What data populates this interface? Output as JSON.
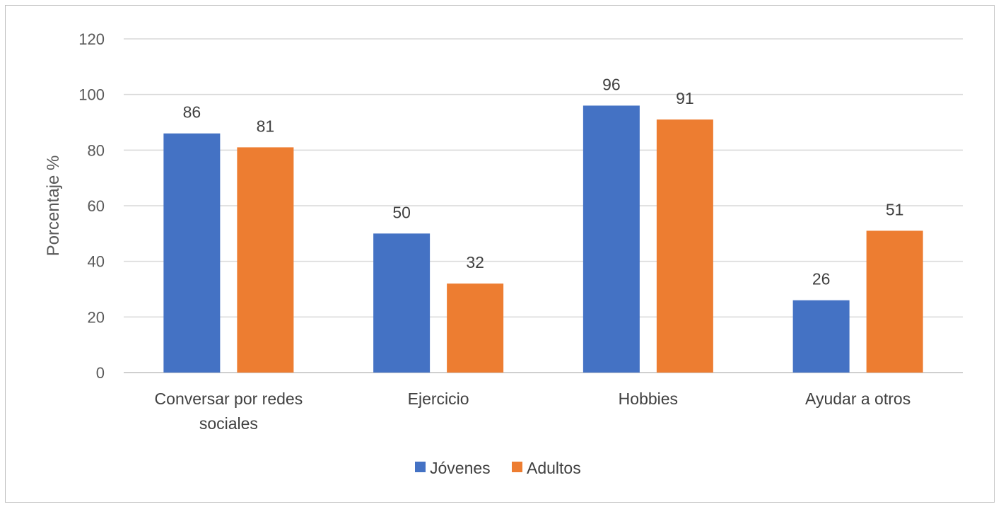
{
  "chart_data": {
    "type": "bar",
    "title": "",
    "xlabel": "",
    "ylabel": "Porcentaje %",
    "ylim": [
      0,
      120
    ],
    "yticks": [
      0,
      20,
      40,
      60,
      80,
      100,
      120
    ],
    "grid": true,
    "legend_position": "bottom",
    "categories": [
      [
        "Conversar por redes",
        "sociales"
      ],
      [
        "Ejercicio"
      ],
      [
        "Hobbies"
      ],
      [
        "Ayudar a otros"
      ]
    ],
    "series": [
      {
        "name": "Jóvenes",
        "color": "#4472c4",
        "values": [
          86,
          50,
          96,
          26
        ]
      },
      {
        "name": "Adultos",
        "color": "#ed7d31",
        "values": [
          81,
          32,
          91,
          51
        ]
      }
    ]
  }
}
